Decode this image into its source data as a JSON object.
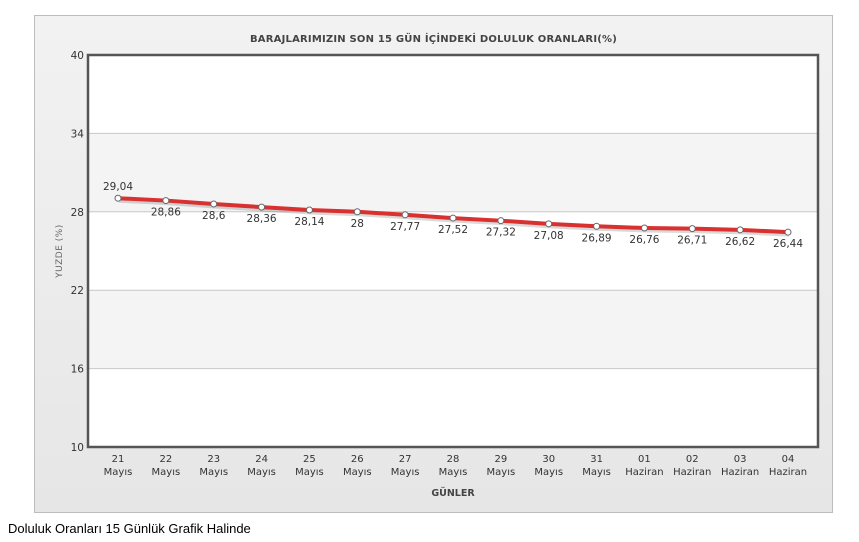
{
  "caption": "Doluluk Oranları 15 Günlük Grafik Halinde",
  "chart_data": {
    "type": "line",
    "title": "BARAJLARIMIZIN SON 15 GÜN İÇİNDEKİ DOLULUK ORANLARI(%)",
    "xlabel": "GÜNLER",
    "ylabel": "YUZDE (%)",
    "ylim": [
      10,
      40
    ],
    "yticks": [
      40,
      34,
      28,
      22,
      16,
      10
    ],
    "grid": true,
    "categories": [
      [
        "21",
        "Mayıs"
      ],
      [
        "22",
        "Mayıs"
      ],
      [
        "23",
        "Mayıs"
      ],
      [
        "24",
        "Mayıs"
      ],
      [
        "25",
        "Mayıs"
      ],
      [
        "26",
        "Mayıs"
      ],
      [
        "27",
        "Mayıs"
      ],
      [
        "28",
        "Mayıs"
      ],
      [
        "29",
        "Mayıs"
      ],
      [
        "30",
        "Mayıs"
      ],
      [
        "31",
        "Mayıs"
      ],
      [
        "01",
        "Haziran"
      ],
      [
        "02",
        "Haziran"
      ],
      [
        "03",
        "Haziran"
      ],
      [
        "04",
        "Haziran"
      ]
    ],
    "values": [
      29.04,
      28.86,
      28.6,
      28.36,
      28.14,
      28,
      27.77,
      27.52,
      27.32,
      27.08,
      26.89,
      26.76,
      26.71,
      26.62,
      26.44
    ],
    "value_labels": [
      "29,04",
      "28,86",
      "28,6",
      "28,36",
      "28,14",
      "28",
      "27,77",
      "27,52",
      "27,32",
      "27,08",
      "26,89",
      "26,76",
      "26,71",
      "26,62",
      "26,44"
    ],
    "line_color": "#d93030"
  }
}
